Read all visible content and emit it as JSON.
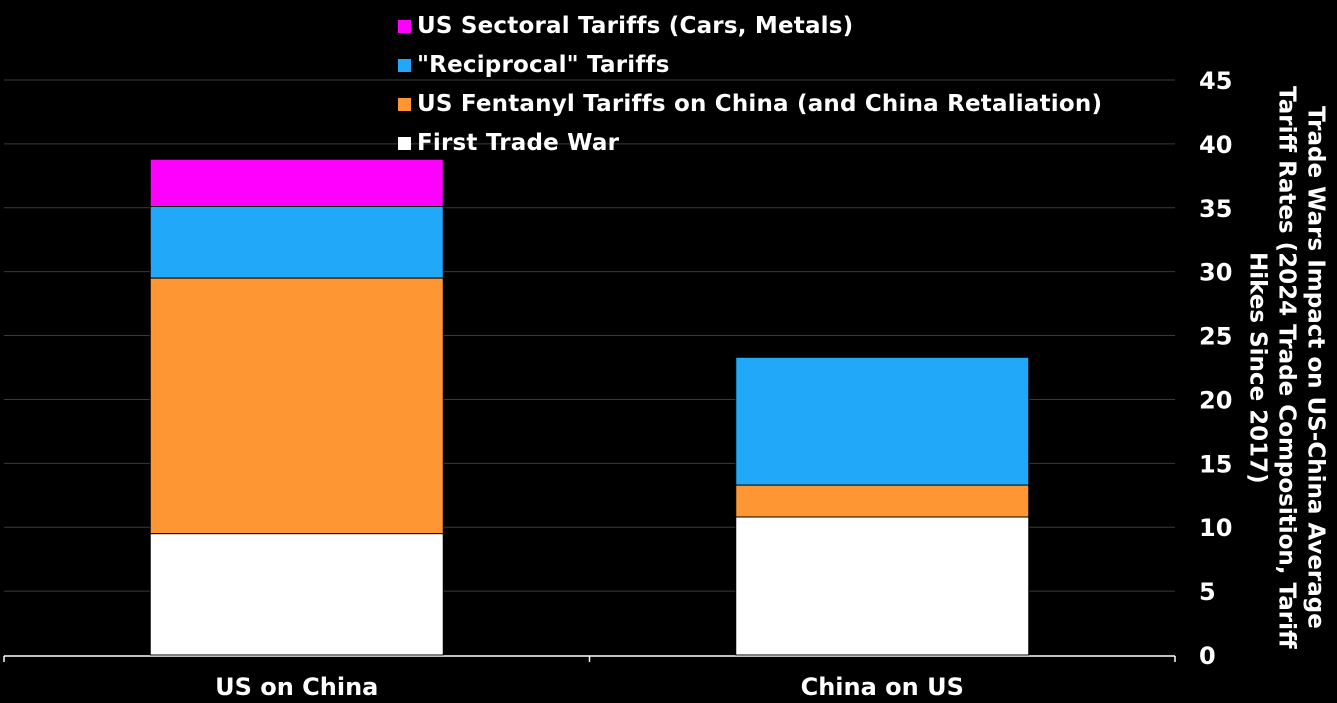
{
  "chart_data": {
    "type": "bar",
    "stacked": true,
    "categories": [
      "US on China",
      "China on US"
    ],
    "series": [
      {
        "name": "First Trade War",
        "color": "#ffffff",
        "values": [
          9.5,
          10.8
        ]
      },
      {
        "name": "US Fentanyl Tariffs on China (and China Retaliation)",
        "color": "#ff9634",
        "values": [
          20.0,
          2.5
        ]
      },
      {
        "name": "\"Reciprocal\" Tariffs",
        "color": "#22a8f9",
        "values": [
          5.6,
          10.0
        ]
      },
      {
        "name": "US Sectoral Tariffs (Cars, Metals)",
        "color": "#ff00ff",
        "values": [
          3.7,
          0.0
        ]
      }
    ],
    "ylabel": "Trade Wars Impact on US-China Average Tariff Rates (2024 Trade Composition, Tariff Hikes Since 2017)",
    "ylim": [
      0,
      45
    ],
    "yticks": [
      0,
      5,
      10,
      15,
      20,
      25,
      30,
      35,
      40,
      45
    ],
    "y_axis_side": "right",
    "grid": true,
    "legend_position": "top-center"
  },
  "legend": [
    {
      "label": "US Sectoral Tariffs (Cars, Metals)",
      "color": "#ff00ff"
    },
    {
      "label": "\"Reciprocal\" Tariffs",
      "color": "#22a8f9"
    },
    {
      "label": "US Fentanyl Tariffs on China (and China Retaliation)",
      "color": "#ff9634"
    },
    {
      "label": "First Trade War",
      "color": "#ffffff"
    }
  ]
}
